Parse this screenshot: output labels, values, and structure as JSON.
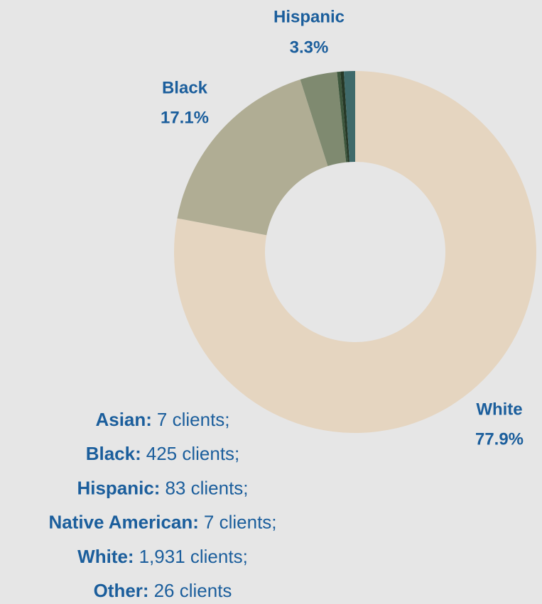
{
  "chart_data": {
    "type": "donut",
    "categories": [
      "White",
      "Black",
      "Hispanic",
      null,
      null,
      null
    ],
    "values": [
      77.9,
      17.1,
      3.3,
      0.3,
      0.3,
      1.0
    ],
    "value_labels": [
      "77.9%",
      "17.1%",
      "3.3%",
      null,
      null,
      null
    ],
    "colors": [
      "#e5d5c0",
      "#b0ad94",
      "#7f8a70",
      "#3d573d",
      "#263826",
      "#3f6a6a"
    ],
    "legend_lines": [
      {
        "name": "Asian:",
        "detail": "7 clients;"
      },
      {
        "name": "Black:",
        "detail": "425 clients;"
      },
      {
        "name": "Hispanic:",
        "detail": "83 clients;"
      },
      {
        "name": "Native American:",
        "detail": "7 clients;"
      },
      {
        "name": "White:",
        "detail": "1,931 clients;"
      },
      {
        "name": "Other:",
        "detail": "26 clients"
      }
    ]
  }
}
